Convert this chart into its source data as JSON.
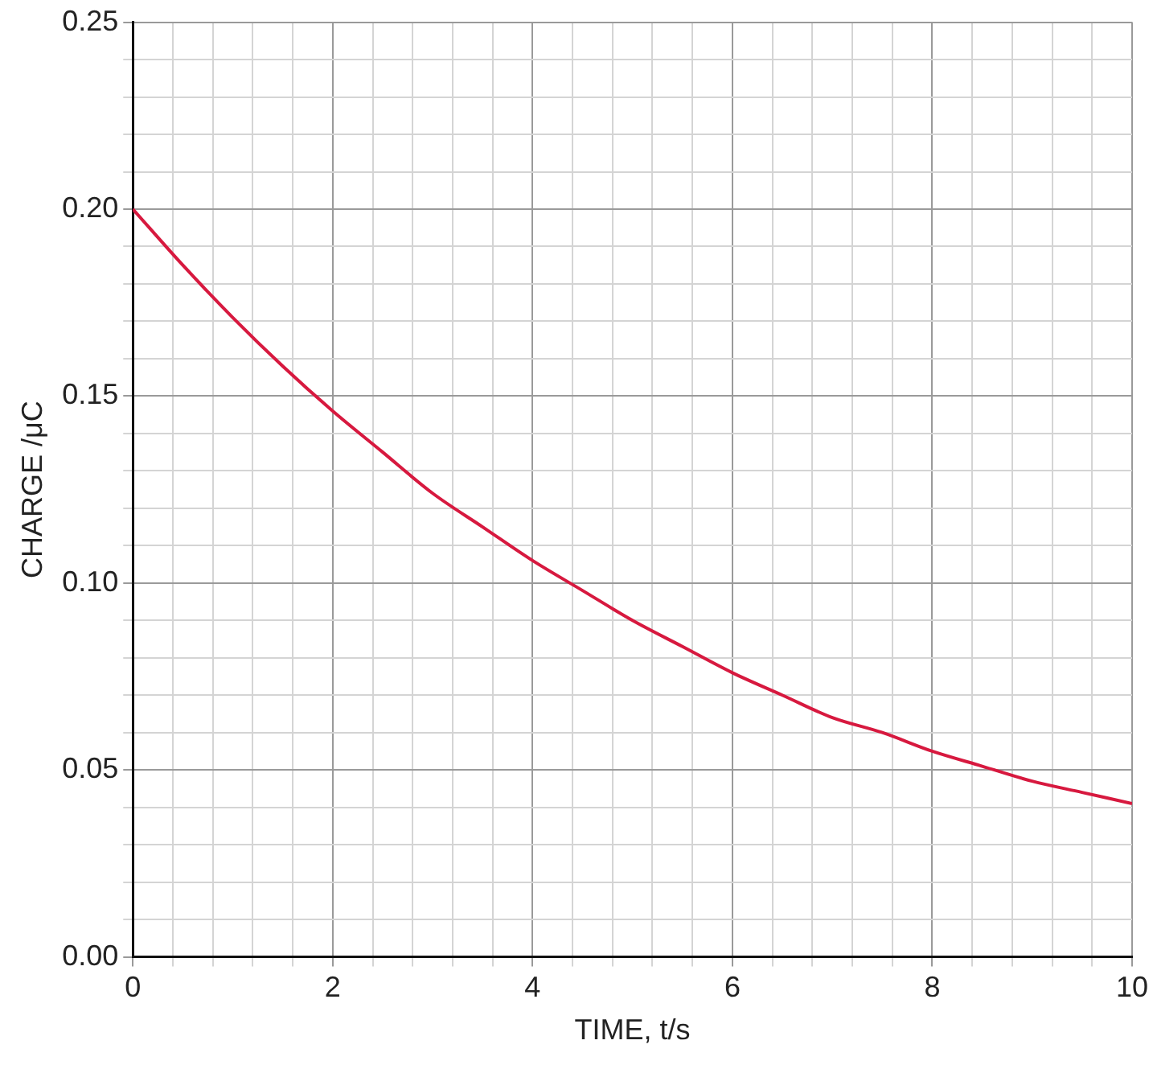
{
  "chart_data": {
    "type": "line",
    "xlabel": "TIME, t/s",
    "ylabel": "CHARGE /μC",
    "x": [
      0,
      0.5,
      1,
      1.5,
      2,
      2.5,
      3,
      3.5,
      4,
      4.5,
      5,
      5.5,
      6,
      6.5,
      7,
      7.5,
      8,
      8.5,
      9,
      9.5,
      10
    ],
    "series": [
      {
        "color": "#d7193f",
        "values": [
          0.2,
          0.185,
          0.171,
          0.158,
          0.146,
          0.135,
          0.124,
          0.115,
          0.106,
          0.098,
          0.09,
          0.083,
          0.076,
          0.07,
          0.064,
          0.06,
          0.055,
          0.051,
          0.047,
          0.044,
          0.041
        ]
      }
    ],
    "xlim": [
      0,
      10
    ],
    "ylim": [
      0,
      0.25
    ],
    "xticks": [
      0,
      {
        "value": 0.4,
        "label": null
      },
      {
        "value": 0.8,
        "label": null
      },
      {
        "value": 1.2,
        "label": null
      },
      {
        "value": 1.6,
        "label": null
      },
      2,
      {
        "value": 2.4,
        "label": null
      },
      {
        "value": 2.8,
        "label": null
      },
      {
        "value": 3.2,
        "label": null
      },
      {
        "value": 3.6,
        "label": null
      },
      4,
      {
        "value": 4.4,
        "label": null
      },
      {
        "value": 4.8,
        "label": null
      },
      {
        "value": 5.2,
        "label": null
      },
      {
        "value": 5.6,
        "label": null
      },
      6,
      {
        "value": 6.4,
        "label": null
      },
      {
        "value": 6.8,
        "label": null
      },
      {
        "value": 7.2,
        "label": null
      },
      {
        "value": 7.6,
        "label": null
      },
      8,
      {
        "value": 8.4,
        "label": null
      },
      {
        "value": 8.8,
        "label": null
      },
      {
        "value": 9.2,
        "label": null
      },
      {
        "value": 9.6,
        "label": null
      },
      10
    ],
    "yticks": [
      {
        "value": 0,
        "label": "0.00"
      },
      {
        "value": 0.01,
        "label": null
      },
      {
        "value": 0.02,
        "label": null
      },
      {
        "value": 0.03,
        "label": null
      },
      {
        "value": 0.04,
        "label": null
      },
      {
        "value": 0.05,
        "label": "0.05"
      },
      {
        "value": 0.06,
        "label": null
      },
      {
        "value": 0.07,
        "label": null
      },
      {
        "value": 0.08,
        "label": null
      },
      {
        "value": 0.09,
        "label": null
      },
      {
        "value": 0.1,
        "label": "0.10"
      },
      {
        "value": 0.11,
        "label": null
      },
      {
        "value": 0.12,
        "label": null
      },
      {
        "value": 0.13,
        "label": null
      },
      {
        "value": 0.14,
        "label": null
      },
      {
        "value": 0.15,
        "label": "0.15"
      },
      {
        "value": 0.16,
        "label": null
      },
      {
        "value": 0.17,
        "label": null
      },
      {
        "value": 0.18,
        "label": null
      },
      {
        "value": 0.19,
        "label": null
      },
      {
        "value": 0.2,
        "label": "0.20"
      },
      {
        "value": 0.21,
        "label": null
      },
      {
        "value": 0.22,
        "label": null
      },
      {
        "value": 0.23,
        "label": null
      },
      {
        "value": 0.24,
        "label": null
      },
      {
        "value": 0.25,
        "label": "0.25"
      }
    ],
    "grid": true,
    "legend": false,
    "marker": "none",
    "line_style": "solid"
  }
}
